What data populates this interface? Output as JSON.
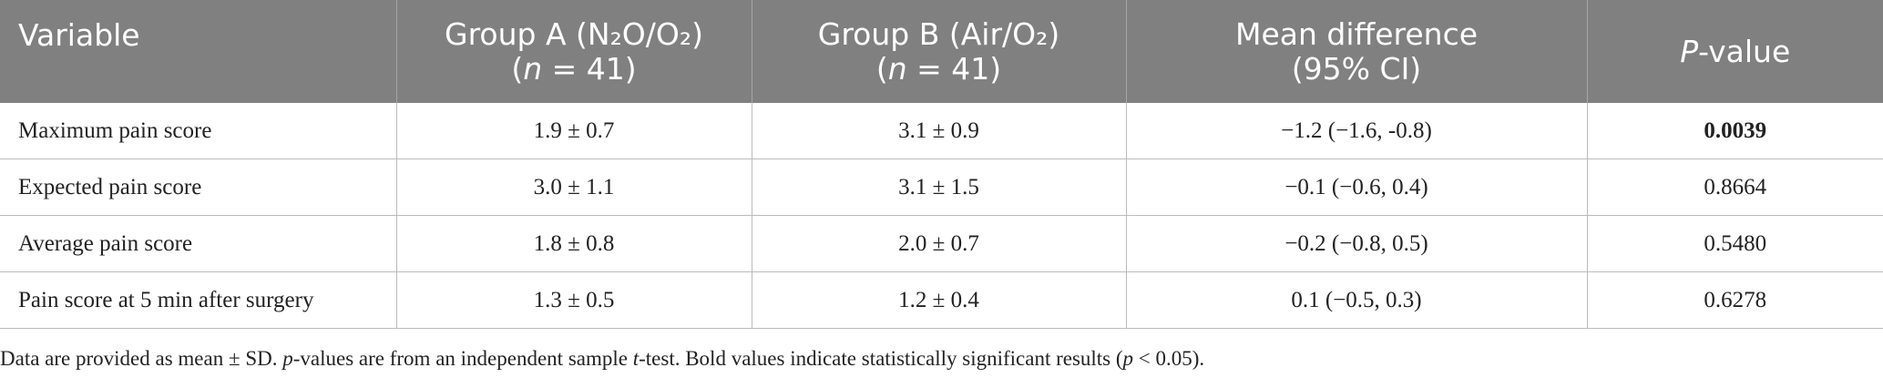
{
  "table": {
    "header": [
      [
        [
          "Variable"
        ]
      ],
      [
        [
          "Group A (N₂O/O₂)"
        ],
        [
          "(",
          "n",
          " = 41)"
        ]
      ],
      [
        [
          "Group B (Air/O₂)"
        ],
        [
          "(",
          "n",
          " = 41)"
        ]
      ],
      [
        [
          "Mean difference"
        ],
        [
          "(95% CI)"
        ]
      ],
      [
        [
          "P",
          "-value"
        ]
      ]
    ],
    "rows": [
      [
        "Maximum pain score",
        "1.9 ± 0.7",
        "3.1 ± 0.9",
        "−1.2 (−1.6, -0.8)",
        "0.0039"
      ],
      [
        "Expected pain score",
        "3.0 ± 1.1",
        "3.1 ± 1.5",
        "−0.1 (−0.6, 0.4)",
        "0.8664"
      ],
      [
        "Average pain score",
        "1.8 ± 0.8",
        "2.0 ± 0.7",
        "−0.2 (−0.8, 0.5)",
        "0.5480"
      ],
      [
        "Pain score at 5 min after surgery",
        "1.3 ± 0.5",
        "1.2 ± 0.4",
        "0.1 (−0.5, 0.3)",
        "0.6278"
      ]
    ],
    "footnote": [
      "Data are provided as mean ± SD. ",
      "p",
      "-values are from an independent sample ",
      "t",
      "-test. Bold values indicate statistically significant results (",
      "p",
      " < 0.05)."
    ]
  }
}
